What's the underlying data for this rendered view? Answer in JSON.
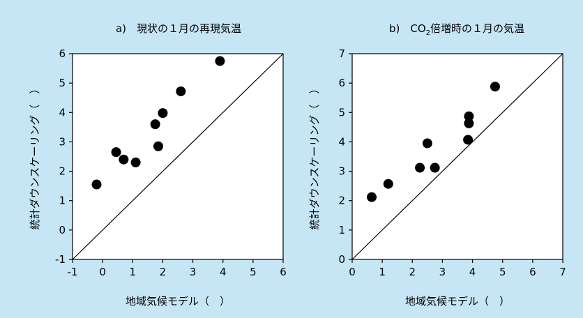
{
  "chart_data": [
    {
      "type": "scatter",
      "title": "a)　現状の１月の再現気温",
      "xlabel": "地域気候モデル（　）",
      "ylabel": "統計ダウンスケーリング（　）",
      "xlim": [
        -1,
        6
      ],
      "ylim": [
        -1,
        6
      ],
      "xticks": [
        -1,
        0,
        1,
        2,
        3,
        4,
        5,
        6
      ],
      "yticks": [
        -1,
        0,
        1,
        2,
        3,
        4,
        5,
        6
      ],
      "reference_line": "y = x",
      "grid": false,
      "points": [
        {
          "x": -0.2,
          "y": 1.55
        },
        {
          "x": 0.45,
          "y": 2.65
        },
        {
          "x": 0.7,
          "y": 2.4
        },
        {
          "x": 1.1,
          "y": 2.3
        },
        {
          "x": 1.75,
          "y": 3.6
        },
        {
          "x": 1.85,
          "y": 2.85
        },
        {
          "x": 2.0,
          "y": 3.98
        },
        {
          "x": 2.6,
          "y": 4.72
        },
        {
          "x": 3.9,
          "y": 5.75
        }
      ]
    },
    {
      "type": "scatter",
      "title_prefix": "b)　CO",
      "title_sub": "2",
      "title_suffix": "倍増時の１月の気温",
      "xlabel": "地域気候モデル（　）",
      "ylabel": "統計ダウンスケーリング（　）",
      "xlim": [
        0,
        7
      ],
      "ylim": [
        0,
        7
      ],
      "xticks": [
        0,
        1,
        2,
        3,
        4,
        5,
        6,
        7
      ],
      "yticks": [
        0,
        1,
        2,
        3,
        4,
        5,
        6,
        7
      ],
      "reference_line": "y = x",
      "grid": false,
      "points": [
        {
          "x": 0.65,
          "y": 2.12
        },
        {
          "x": 1.2,
          "y": 2.57
        },
        {
          "x": 2.25,
          "y": 3.12
        },
        {
          "x": 2.5,
          "y": 3.95
        },
        {
          "x": 2.75,
          "y": 3.12
        },
        {
          "x": 3.85,
          "y": 4.07
        },
        {
          "x": 3.88,
          "y": 4.63
        },
        {
          "x": 3.88,
          "y": 4.87
        },
        {
          "x": 4.75,
          "y": 5.88
        }
      ]
    }
  ]
}
